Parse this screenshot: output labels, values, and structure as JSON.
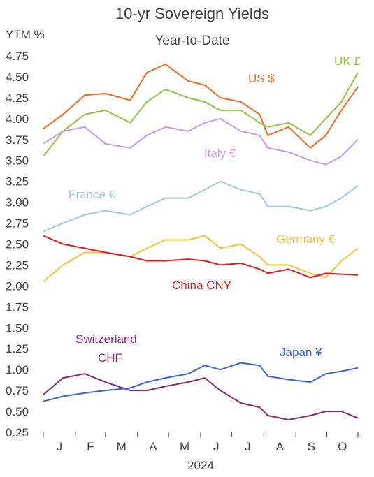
{
  "chart_data": {
    "type": "line",
    "title": "10-yr Sovereign Yields",
    "subtitle": "Year-to-Date",
    "ylabel": "YTM %",
    "xlabel": "2024",
    "ylim": [
      0.25,
      4.75
    ],
    "yticks": [
      "4.75",
      "4.50",
      "4.25",
      "4.00",
      "3.75",
      "3.50",
      "3.25",
      "3.00",
      "2.75",
      "2.50",
      "2.25",
      "2.00",
      "1.75",
      "1.50",
      "1.25",
      "1.00",
      "0.75",
      "0.50",
      "0.25"
    ],
    "month_labels": [
      "J",
      "F",
      "M",
      "A",
      "M",
      "J",
      "J",
      "A",
      "S",
      "O"
    ],
    "x_start": "2024-01-01",
    "x_end": "2024-10-31",
    "series": [
      {
        "name": "US $",
        "color": "#f26b21",
        "dates": [
          "2024-01-01",
          "2024-01-20",
          "2024-02-10",
          "2024-03-01",
          "2024-03-25",
          "2024-04-10",
          "2024-04-28",
          "2024-05-20",
          "2024-06-05",
          "2024-06-20",
          "2024-07-10",
          "2024-07-28",
          "2024-08-05",
          "2024-08-25",
          "2024-09-15",
          "2024-09-30",
          "2024-10-15",
          "2024-10-31"
        ],
        "values": [
          3.88,
          4.05,
          4.28,
          4.3,
          4.22,
          4.55,
          4.65,
          4.45,
          4.4,
          4.25,
          4.2,
          4.05,
          3.8,
          3.9,
          3.65,
          3.8,
          4.1,
          4.38
        ]
      },
      {
        "name": "UK £",
        "color": "#8dc63f",
        "dates": [
          "2024-01-01",
          "2024-01-20",
          "2024-02-10",
          "2024-03-01",
          "2024-03-25",
          "2024-04-10",
          "2024-04-28",
          "2024-05-20",
          "2024-06-05",
          "2024-06-20",
          "2024-07-10",
          "2024-07-28",
          "2024-08-05",
          "2024-08-25",
          "2024-09-15",
          "2024-09-30",
          "2024-10-15",
          "2024-10-31"
        ],
        "values": [
          3.55,
          3.85,
          4.05,
          4.1,
          3.95,
          4.2,
          4.35,
          4.25,
          4.2,
          4.1,
          4.1,
          3.95,
          3.9,
          3.95,
          3.8,
          4.0,
          4.2,
          4.55
        ]
      },
      {
        "name": "Italy €",
        "color": "#c39bef",
        "dates": [
          "2024-01-01",
          "2024-01-20",
          "2024-02-10",
          "2024-03-01",
          "2024-03-25",
          "2024-04-10",
          "2024-04-28",
          "2024-05-20",
          "2024-06-05",
          "2024-06-20",
          "2024-07-10",
          "2024-07-28",
          "2024-08-05",
          "2024-08-25",
          "2024-09-15",
          "2024-09-30",
          "2024-10-15",
          "2024-10-31"
        ],
        "values": [
          3.7,
          3.85,
          3.9,
          3.7,
          3.65,
          3.8,
          3.9,
          3.85,
          3.95,
          4.0,
          3.85,
          3.8,
          3.65,
          3.6,
          3.5,
          3.45,
          3.55,
          3.75
        ]
      },
      {
        "name": "France €",
        "color": "#9ecae1",
        "dates": [
          "2024-01-01",
          "2024-01-20",
          "2024-02-10",
          "2024-03-01",
          "2024-03-25",
          "2024-04-10",
          "2024-04-28",
          "2024-05-20",
          "2024-06-05",
          "2024-06-20",
          "2024-07-10",
          "2024-07-28",
          "2024-08-05",
          "2024-08-25",
          "2024-09-15",
          "2024-09-30",
          "2024-10-15",
          "2024-10-31"
        ],
        "values": [
          2.65,
          2.75,
          2.85,
          2.9,
          2.85,
          2.95,
          3.05,
          3.05,
          3.15,
          3.25,
          3.15,
          3.1,
          2.95,
          2.95,
          2.9,
          2.95,
          3.05,
          3.2
        ]
      },
      {
        "name": "Germany €",
        "color": "#f7c531",
        "dates": [
          "2024-01-01",
          "2024-01-20",
          "2024-02-10",
          "2024-03-01",
          "2024-03-25",
          "2024-04-10",
          "2024-04-28",
          "2024-05-20",
          "2024-06-05",
          "2024-06-20",
          "2024-07-10",
          "2024-07-28",
          "2024-08-05",
          "2024-08-25",
          "2024-09-15",
          "2024-09-30",
          "2024-10-15",
          "2024-10-31"
        ],
        "values": [
          2.05,
          2.25,
          2.4,
          2.4,
          2.35,
          2.45,
          2.55,
          2.55,
          2.6,
          2.45,
          2.5,
          2.35,
          2.25,
          2.25,
          2.15,
          2.1,
          2.3,
          2.45
        ]
      },
      {
        "name": "China CNY",
        "color": "#e01b22",
        "dates": [
          "2024-01-01",
          "2024-01-20",
          "2024-02-10",
          "2024-03-01",
          "2024-03-25",
          "2024-04-10",
          "2024-04-28",
          "2024-05-20",
          "2024-06-05",
          "2024-06-20",
          "2024-07-10",
          "2024-07-28",
          "2024-08-05",
          "2024-08-25",
          "2024-09-15",
          "2024-09-30",
          "2024-10-15",
          "2024-10-31"
        ],
        "values": [
          2.6,
          2.5,
          2.45,
          2.4,
          2.35,
          2.3,
          2.3,
          2.32,
          2.3,
          2.25,
          2.27,
          2.2,
          2.15,
          2.2,
          2.1,
          2.15,
          2.14,
          2.13
        ]
      },
      {
        "name": "Switzerland CHF",
        "color": "#8b2a6f",
        "dates": [
          "2024-01-01",
          "2024-01-20",
          "2024-02-10",
          "2024-03-01",
          "2024-03-25",
          "2024-04-10",
          "2024-04-28",
          "2024-05-20",
          "2024-06-05",
          "2024-06-20",
          "2024-07-10",
          "2024-07-28",
          "2024-08-05",
          "2024-08-25",
          "2024-09-15",
          "2024-09-30",
          "2024-10-15",
          "2024-10-31"
        ],
        "values": [
          0.7,
          0.9,
          0.95,
          0.85,
          0.75,
          0.75,
          0.8,
          0.85,
          0.9,
          0.75,
          0.6,
          0.55,
          0.45,
          0.4,
          0.45,
          0.5,
          0.5,
          0.42
        ]
      },
      {
        "name": "Japan ¥",
        "color": "#3a64d8",
        "dates": [
          "2024-01-01",
          "2024-01-20",
          "2024-02-10",
          "2024-03-01",
          "2024-03-25",
          "2024-04-10",
          "2024-04-28",
          "2024-05-20",
          "2024-06-05",
          "2024-06-20",
          "2024-07-10",
          "2024-07-28",
          "2024-08-05",
          "2024-08-25",
          "2024-09-15",
          "2024-09-30",
          "2024-10-15",
          "2024-10-31"
        ],
        "values": [
          0.62,
          0.68,
          0.72,
          0.75,
          0.78,
          0.85,
          0.9,
          0.95,
          1.05,
          1.0,
          1.08,
          1.05,
          0.92,
          0.88,
          0.85,
          0.95,
          0.98,
          1.02
        ]
      }
    ]
  },
  "labels": {
    "us": "US $",
    "uk": "UK £",
    "italy": "Italy €",
    "france": "France €",
    "germany": "Germany €",
    "china": "China CNY",
    "switzerland_line1": "Switzerland",
    "switzerland_line2": "CHF",
    "japan": "Japan ¥"
  }
}
